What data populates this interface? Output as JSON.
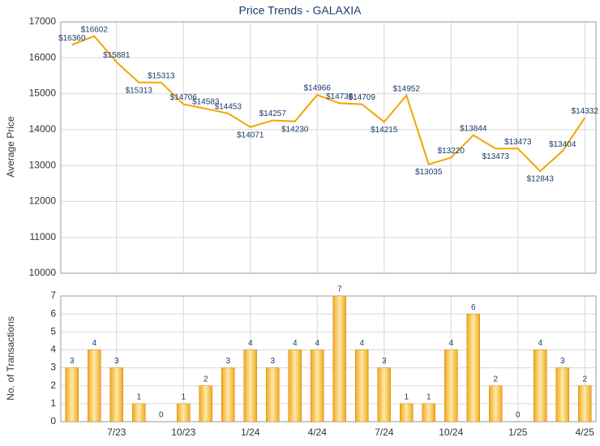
{
  "chart_data": [
    {
      "type": "line",
      "title": "Price Trends - GALAXIA",
      "y_label": "Average Price",
      "color": "#f5a300",
      "values": [
        16360,
        16602,
        15881,
        15313,
        15313,
        14706,
        14583,
        14453,
        14071,
        14257,
        14230,
        14966,
        14736,
        14709,
        14215,
        14952,
        13035,
        13220,
        13844,
        13473,
        13473,
        12843,
        13404,
        14332
      ],
      "value_labels": [
        "$16360",
        "$16602",
        "$15881",
        "$15313",
        "$15313",
        "$14706",
        "$14583",
        "$14453",
        "$14071",
        "$14257",
        "$14230",
        "$14966",
        "$14736",
        "$14709",
        "$14215",
        "$14952",
        "$13035",
        "$13220",
        "$13844",
        "$13473",
        "$13473",
        "$12843",
        "$13404",
        "$14332"
      ],
      "ylim": [
        10000,
        17000
      ],
      "yticks": [
        10000,
        11000,
        12000,
        13000,
        14000,
        15000,
        16000,
        17000
      ],
      "grid": true
    },
    {
      "type": "bar",
      "y_label": "No. of Transactions",
      "color": "#f0a820",
      "categories": [
        null,
        null,
        "7/23",
        null,
        null,
        "10/23",
        null,
        null,
        "1/24",
        null,
        null,
        "4/24",
        null,
        null,
        "7/24",
        null,
        null,
        "10/24",
        null,
        null,
        "1/25",
        null,
        null,
        "4/25"
      ],
      "values": [
        3,
        4,
        3,
        1,
        0,
        1,
        2,
        3,
        4,
        3,
        4,
        4,
        7,
        4,
        3,
        1,
        1,
        4,
        6,
        2,
        0,
        4,
        3,
        2
      ],
      "ylim": [
        0,
        7
      ],
      "yticks": [
        0,
        1,
        2,
        3,
        4,
        5,
        6,
        7
      ],
      "grid": true
    }
  ]
}
